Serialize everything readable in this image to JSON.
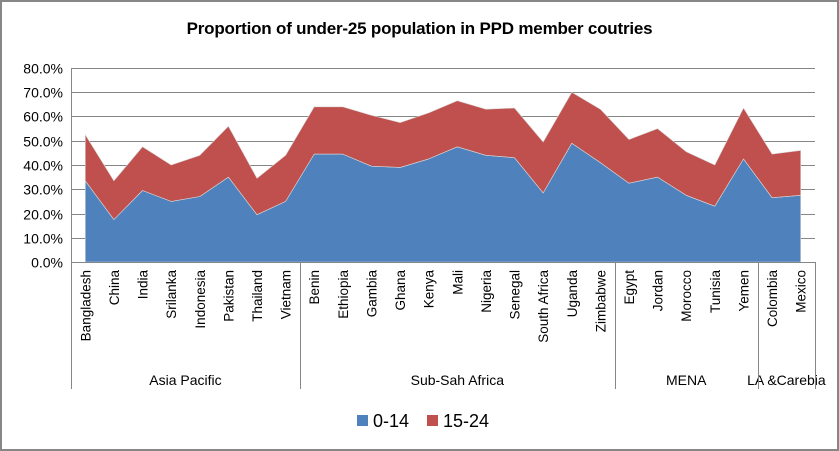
{
  "chart_data": {
    "type": "area",
    "stacked": true,
    "title": "Proportion of under-25 population in PPD member coutries",
    "xlabel": "",
    "ylabel": "",
    "ylim": [
      0,
      0.8
    ],
    "yticks": [
      "0.0%",
      "10.0%",
      "20.0%",
      "30.0%",
      "40.0%",
      "50.0%",
      "60.0%",
      "70.0%",
      "80.0%"
    ],
    "grid": true,
    "legend_position": "bottom",
    "categories": [
      "Bangladesh",
      "China",
      "India",
      "Srilanka",
      "Indonesia",
      "Pakistan",
      "Thailand",
      "Vietnam",
      "Benin",
      "Ethiopia",
      "Gambia",
      "Ghana",
      "Kenya",
      "Mali",
      "Nigeria",
      "Senegal",
      "South Africa",
      "Uganda",
      "Zimbabwe",
      "Egypt",
      "Jordan",
      "Morocco",
      "Tunisia",
      "Yemen",
      "Colombia",
      "Mexico"
    ],
    "groups": [
      {
        "name": "Asia Pacific",
        "count": 8
      },
      {
        "name": "Sub-Sah Africa",
        "count": 11
      },
      {
        "name": "MENA",
        "count": 5
      },
      {
        "name": "LA &Carebia",
        "count": 2
      }
    ],
    "series": [
      {
        "name": "0-14",
        "color": "#4f81bd",
        "values": [
          0.335,
          0.175,
          0.295,
          0.25,
          0.27,
          0.35,
          0.195,
          0.25,
          0.445,
          0.445,
          0.395,
          0.39,
          0.425,
          0.475,
          0.44,
          0.43,
          0.285,
          0.49,
          0.41,
          0.325,
          0.35,
          0.275,
          0.23,
          0.425,
          0.265,
          0.275
        ]
      },
      {
        "name": "15-24",
        "color": "#c0504d",
        "values": [
          0.19,
          0.16,
          0.18,
          0.15,
          0.17,
          0.21,
          0.15,
          0.19,
          0.195,
          0.195,
          0.21,
          0.185,
          0.19,
          0.19,
          0.19,
          0.205,
          0.21,
          0.21,
          0.22,
          0.18,
          0.2,
          0.18,
          0.17,
          0.21,
          0.18,
          0.185
        ]
      }
    ]
  }
}
